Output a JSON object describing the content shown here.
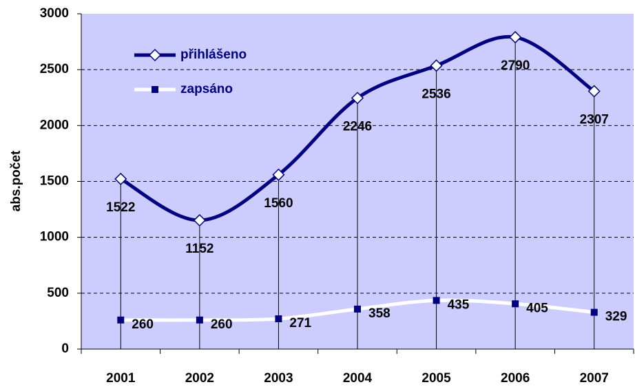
{
  "chart_data": {
    "type": "line",
    "y_label": "abs.počet",
    "categories": [
      "2001",
      "2002",
      "2003",
      "2004",
      "2005",
      "2006",
      "2007"
    ],
    "series": [
      {
        "name": "přihlášeno",
        "color": "#000080",
        "marker": "diamond",
        "values": [
          1522,
          1152,
          1560,
          2246,
          2536,
          2790,
          2307
        ]
      },
      {
        "name": "zapsáno",
        "color": "#ffffff",
        "marker": "square",
        "values": [
          260,
          260,
          271,
          358,
          435,
          405,
          329
        ]
      }
    ],
    "ylim": [
      0,
      3000
    ],
    "yticks": [
      0,
      500,
      1000,
      1500,
      2000,
      2500,
      3000
    ],
    "grid": true,
    "background": "#ccccff",
    "drop_lines": true,
    "legend": "top-left"
  }
}
